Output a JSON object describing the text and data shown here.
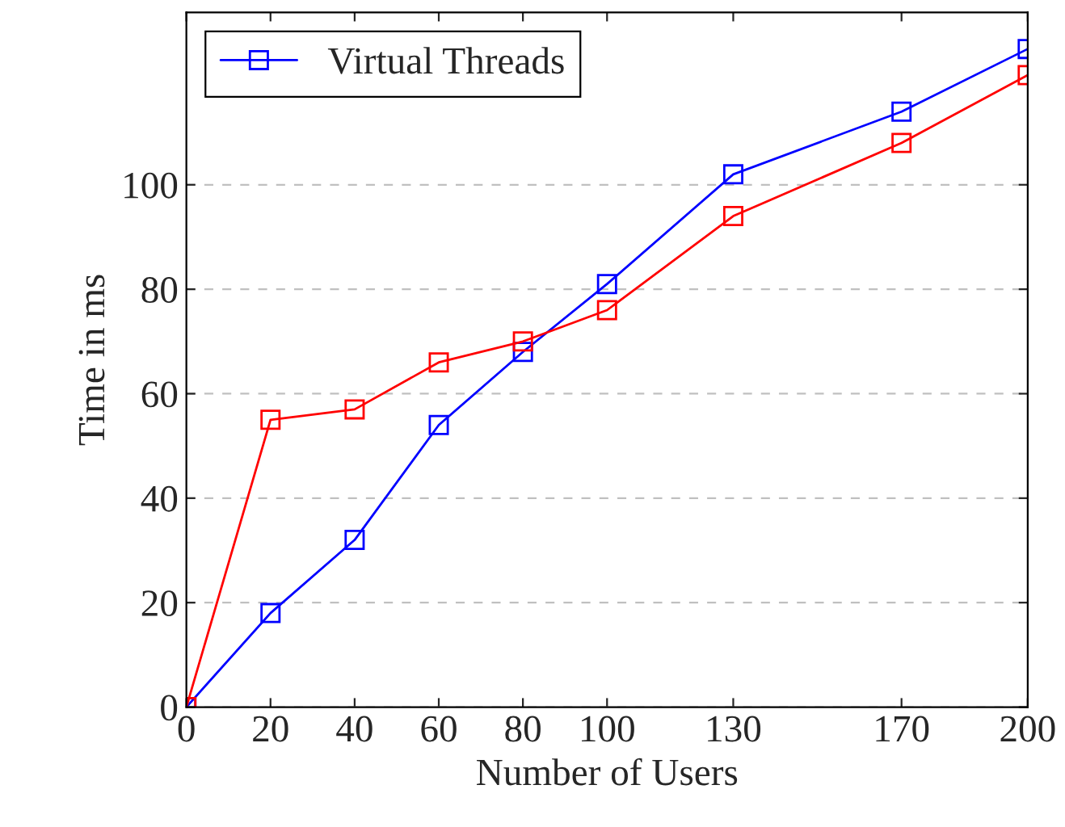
{
  "chart_data": {
    "type": "line",
    "xlabel": "Number of Users",
    "ylabel": "Time in ms",
    "x": [
      0,
      20,
      40,
      60,
      80,
      100,
      130,
      170,
      200
    ],
    "series": [
      {
        "name": "Virtual Threads",
        "color": "#0000ff",
        "values": [
          0,
          18,
          32,
          54,
          68,
          81,
          102,
          114,
          126
        ]
      },
      {
        "color": "#ff0000",
        "values": [
          0,
          55,
          57,
          66,
          70,
          76,
          94,
          108,
          121
        ]
      }
    ],
    "xlim": [
      0,
      200
    ],
    "xticks": [
      0,
      20,
      40,
      60,
      80,
      100,
      130,
      170,
      200
    ],
    "ylim": [
      0,
      133
    ],
    "yticks": [
      0,
      20,
      40,
      60,
      80,
      100
    ],
    "grid": "y",
    "legend": "top left",
    "marker": "square",
    "line_style": "solid"
  }
}
